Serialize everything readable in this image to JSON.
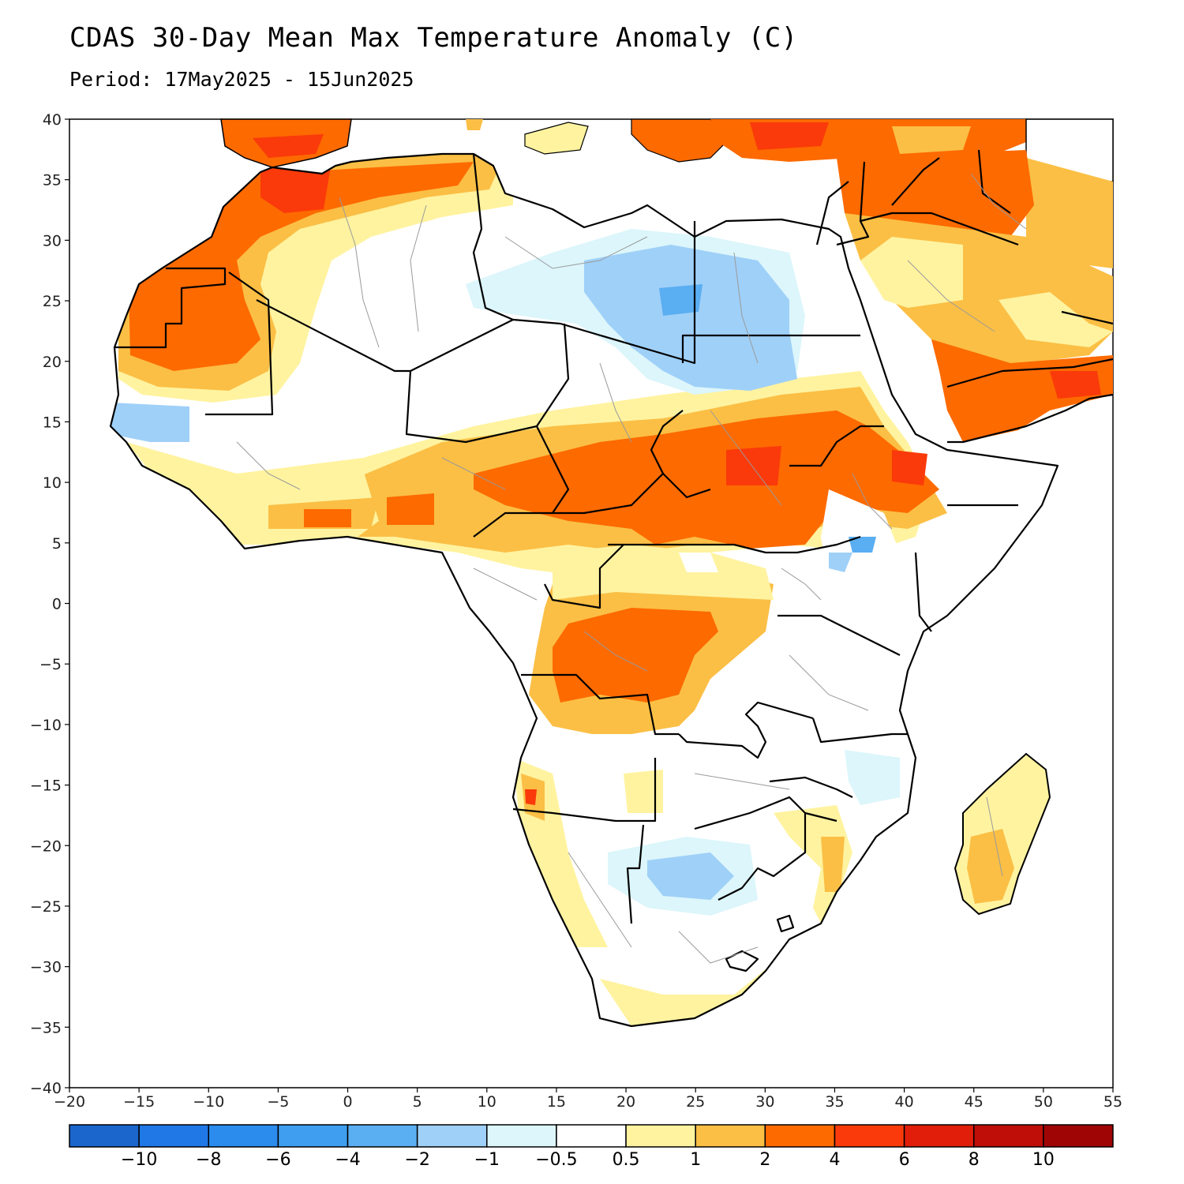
{
  "header": {
    "title": "CDAS 30-Day Mean Max Temperature Anomaly (C)",
    "subtitle": "Period: 17May2025 - 15Jun2025"
  },
  "axes": {
    "x_ticks": [
      "−20",
      "−15",
      "−10",
      "−5",
      "0",
      "5",
      "10",
      "15",
      "20",
      "25",
      "30",
      "35",
      "40",
      "45",
      "50",
      "55"
    ],
    "y_ticks": [
      "40",
      "35",
      "30",
      "25",
      "20",
      "15",
      "10",
      "5",
      "0",
      "−5",
      "−10",
      "−15",
      "−20",
      "−25",
      "−30",
      "−35",
      "−40"
    ],
    "lon_range": [
      -20,
      55
    ],
    "lat_range": [
      -40,
      40
    ]
  },
  "colorbar": {
    "colors": [
      "#1a66cc",
      "#1f78e6",
      "#2b8cee",
      "#3f9ef0",
      "#5aaef2",
      "#9fd0f8",
      "#dcf6fb",
      "#ffffff",
      "#fff3a0",
      "#fbbf45",
      "#fd6a00",
      "#fa3a0a",
      "#e01e0a",
      "#bf0e08",
      "#a00505"
    ],
    "labels": [
      "−10",
      "−8",
      "−6",
      "−4",
      "−2",
      "−1",
      "−0.5",
      "0.5",
      "1",
      "2",
      "4",
      "6",
      "8",
      "10"
    ]
  },
  "map": {
    "region": "Africa",
    "land_color": "#ffffff",
    "ocean_color": "#ffffff"
  }
}
